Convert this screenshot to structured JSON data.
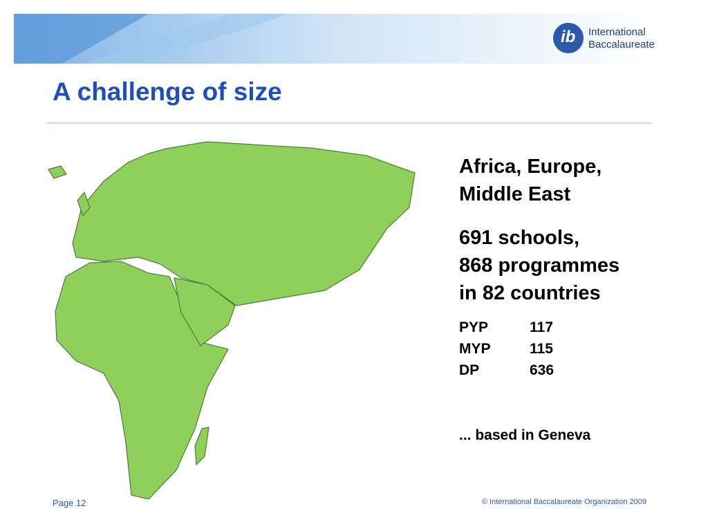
{
  "header": {
    "logo_lines": [
      "International",
      "Baccalaureate"
    ],
    "logo_mark": "ib"
  },
  "title": "A challenge of size",
  "region_lines": [
    "Africa, Europe,",
    "Middle East"
  ],
  "stats_lines": [
    "691 schools,",
    "868 programmes",
    "in 82 countries"
  ],
  "programmes": {
    "rows": [
      [
        "PYP",
        117
      ],
      [
        "MYP",
        115
      ],
      [
        "DP",
        636
      ]
    ]
  },
  "note": "... based in Geneva",
  "footer": {
    "page": "Page 12",
    "copyright": "© International Baccalaureate Organization 2009"
  }
}
